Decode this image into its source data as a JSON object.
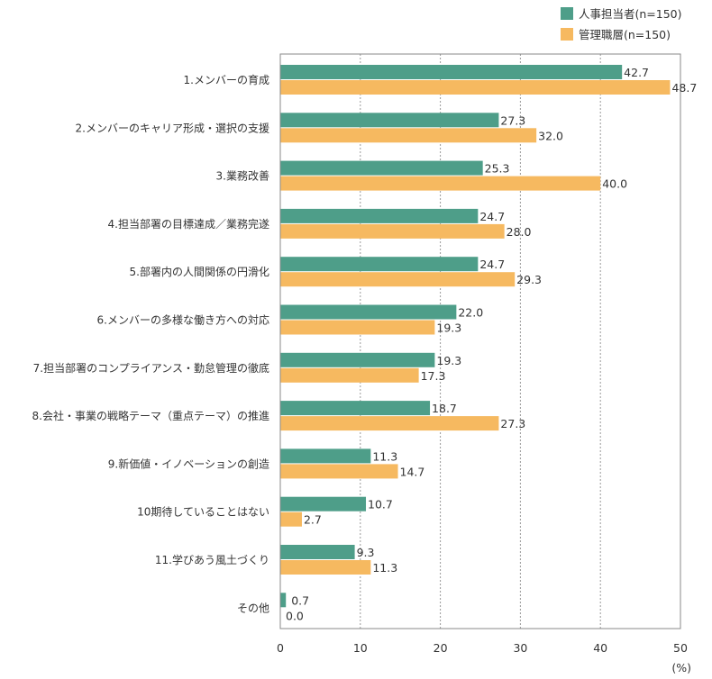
{
  "chart_data": {
    "type": "bar",
    "orientation": "horizontal",
    "categories": [
      "1.メンバーの育成",
      "2.メンバーのキャリア形成・選択の支援",
      "3.業務改善",
      "4.担当部署の目標達成／業務完遂",
      "5.部署内の人間関係の円滑化",
      "6.メンバーの多様な働き方への対応",
      "7.担当部署のコンプライアンス・勤怠管理の徹底",
      "8.会社・事業の戦略テーマ（重点テーマ）の推進",
      "9.新価値・イノベーションの創造",
      "10期待していることはない",
      "11.学びあう風土づくり",
      "その他"
    ],
    "series": [
      {
        "name": "人事担当者(n=150)",
        "color": "#4e9e89",
        "values": [
          42.7,
          27.3,
          25.3,
          24.7,
          24.7,
          22.0,
          19.3,
          18.7,
          11.3,
          10.7,
          9.3,
          0.7
        ],
        "labels": [
          "42.7",
          "27.3",
          "25.3",
          "24.7",
          "24.7",
          "22.0",
          "19.3",
          "18.7",
          "11.3",
          "10.7",
          "9.3",
          "0.7"
        ]
      },
      {
        "name": "管理職層(n=150)",
        "color": "#f6b960",
        "values": [
          48.7,
          32.0,
          40.0,
          28.0,
          29.3,
          19.3,
          17.3,
          27.3,
          14.7,
          2.7,
          11.3,
          0.0
        ],
        "labels": [
          "48.7",
          "32.0",
          "40.0",
          "28.0",
          "29.3",
          "19.3",
          "17.3",
          "27.3",
          "14.7",
          "2.7",
          "11.3",
          "0.0"
        ]
      }
    ],
    "xlim": [
      0,
      50
    ],
    "ticks": [
      "0",
      "10",
      "20",
      "30",
      "40",
      "50"
    ],
    "tick_values": [
      0,
      10,
      20,
      30,
      40,
      50
    ],
    "xunit": "(%)",
    "grid": "vertical dotted",
    "legend_position": "top-right"
  }
}
